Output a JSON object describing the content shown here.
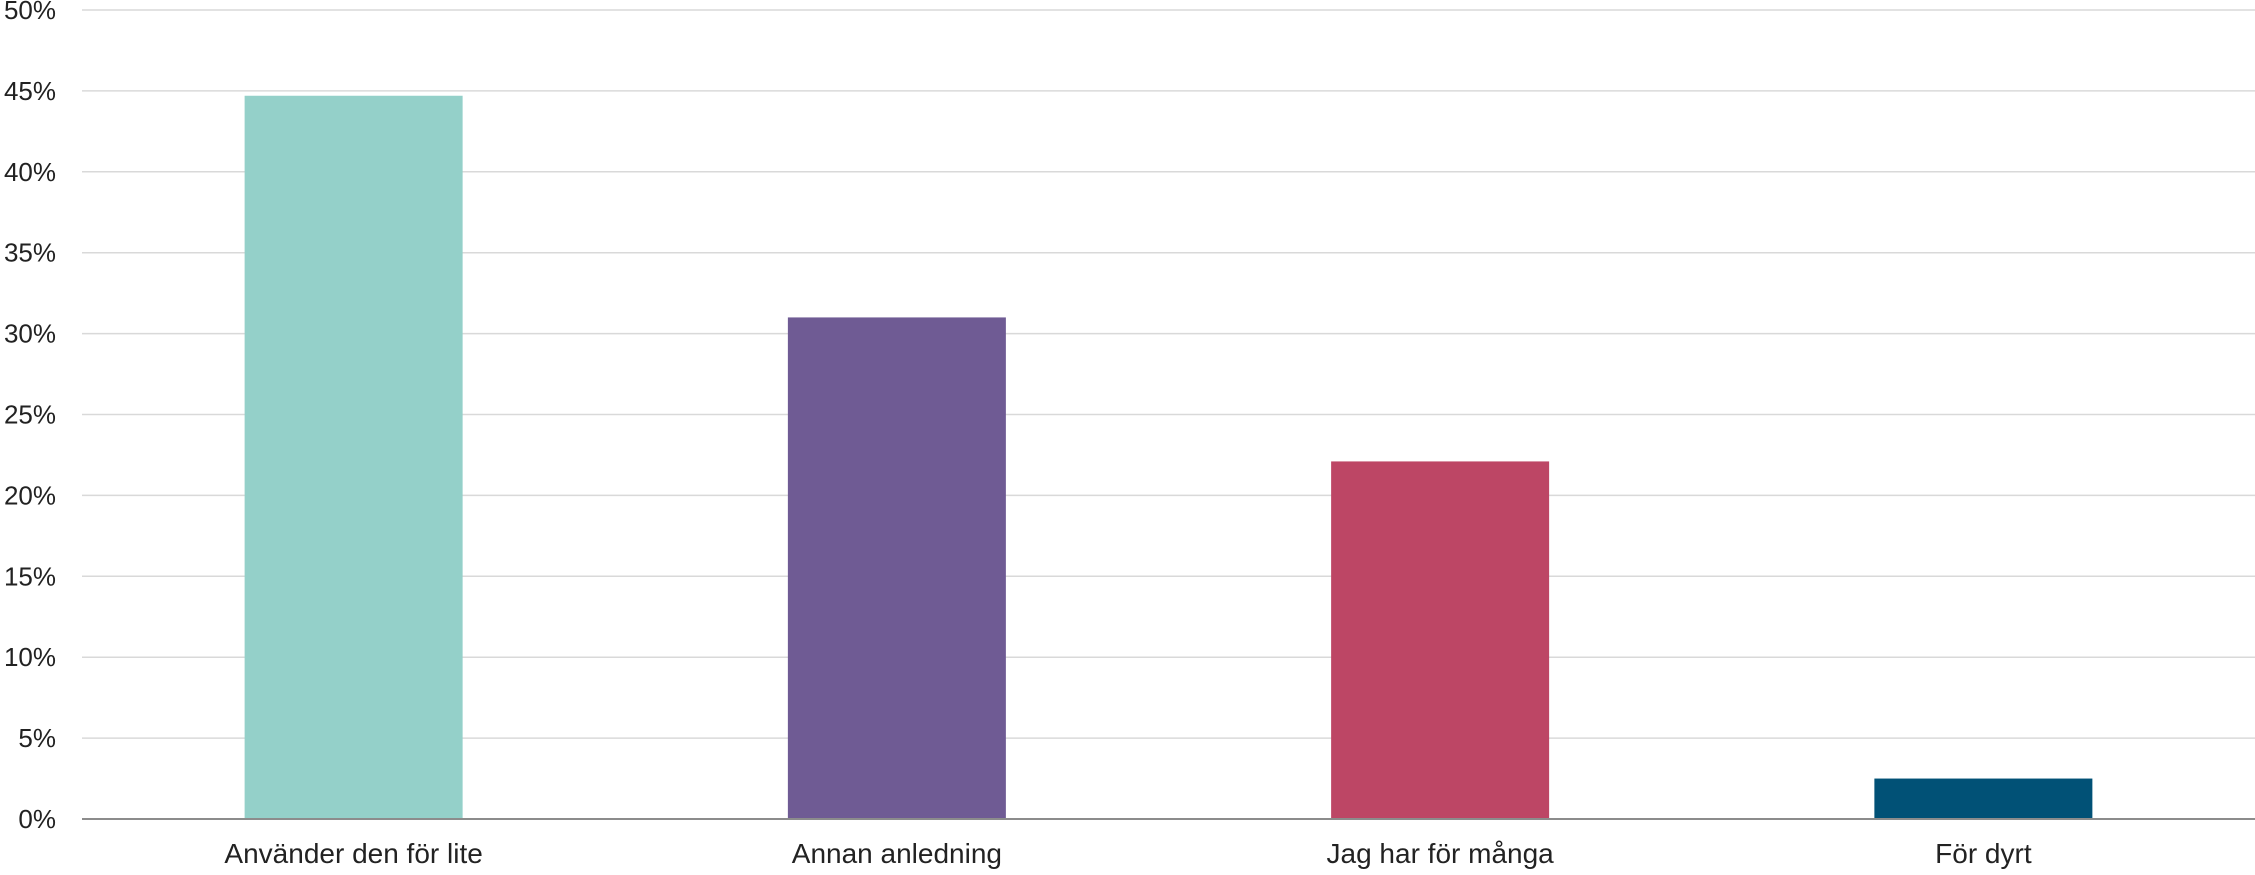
{
  "chart_data": {
    "type": "bar",
    "categories": [
      "Använder den för lite",
      "Annan anledning",
      "Jag har för många",
      "För dyrt"
    ],
    "values": [
      44.7,
      31.0,
      22.1,
      2.5
    ],
    "colors": [
      "#94D0C9",
      "#6F5B94",
      "#BD4665",
      "#015176"
    ],
    "ylim": [
      0,
      50
    ],
    "yticks": [
      0,
      5,
      10,
      15,
      20,
      25,
      30,
      35,
      40,
      45,
      50
    ],
    "ytick_labels": [
      "0%",
      "5%",
      "10%",
      "15%",
      "20%",
      "25%",
      "30%",
      "35%",
      "40%",
      "45%",
      "50%"
    ],
    "grid": true,
    "legend": "none",
    "gridline_color": "#D9D9D9",
    "axis_color": "#8C8C8C",
    "title": "",
    "xlabel": "",
    "ylabel": ""
  }
}
